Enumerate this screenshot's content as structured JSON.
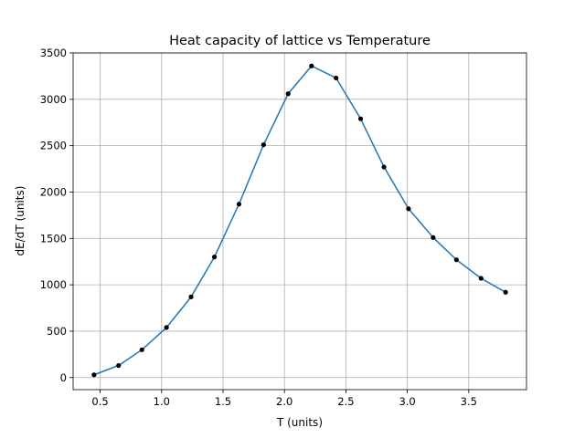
{
  "chart_data": {
    "type": "line",
    "title": "Heat capacity of lattice vs Temperature",
    "xlabel": "T (units)",
    "ylabel": "dE/dT (units)",
    "xlim": [
      0.28,
      3.97
    ],
    "ylim": [
      -130,
      3500
    ],
    "grid": true,
    "x_ticks": [
      0.5,
      1.0,
      1.5,
      2.0,
      2.5,
      3.0,
      3.5
    ],
    "x_tick_labels": [
      "0.5",
      "1.0",
      "1.5",
      "2.0",
      "2.5",
      "3.0",
      "3.5"
    ],
    "y_ticks": [
      0,
      500,
      1000,
      1500,
      2000,
      2500,
      3000,
      3500
    ],
    "y_tick_labels": [
      "0",
      "500",
      "1000",
      "1500",
      "2000",
      "2500",
      "3000",
      "3500"
    ],
    "line_color": "#1f77b4",
    "marker_color": "#000000",
    "series": [
      {
        "x": [
          0.45,
          0.65,
          0.84,
          1.04,
          1.24,
          1.43,
          1.63,
          1.83,
          2.03,
          2.22,
          2.42,
          2.62,
          2.81,
          3.01,
          3.21,
          3.4,
          3.6,
          3.8
        ],
        "y": [
          30,
          130,
          300,
          540,
          870,
          1300,
          1870,
          2510,
          3060,
          3360,
          3230,
          2790,
          2270,
          1820,
          1510,
          1270,
          1070,
          920
        ]
      }
    ]
  }
}
